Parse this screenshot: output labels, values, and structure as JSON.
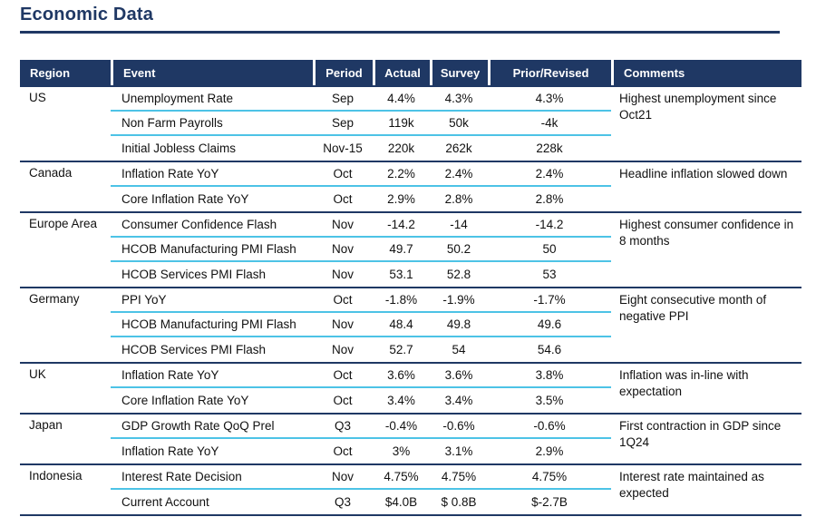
{
  "title": "Economic Data",
  "colors": {
    "navy": "#1F3864",
    "cyan": "#4DC3E6"
  },
  "table": {
    "headers": [
      "Region",
      "Event",
      "Period",
      "Actual",
      "Survey",
      "Prior/Revised",
      "Comments"
    ],
    "groups": [
      {
        "region": "US",
        "comment": "Highest unemployment since Oct21",
        "rows": [
          {
            "event": "Unemployment Rate",
            "period": "Sep",
            "actual": "4.4%",
            "survey": "4.3%",
            "prior": "4.3%"
          },
          {
            "event": "Non Farm Payrolls",
            "period": "Sep",
            "actual": "119k",
            "survey": "50k",
            "prior": "-4k"
          },
          {
            "event": "Initial Jobless Claims",
            "period": "Nov-15",
            "actual": "220k",
            "survey": "262k",
            "prior": "228k"
          }
        ]
      },
      {
        "region": "Canada",
        "comment": "Headline inflation slowed down",
        "rows": [
          {
            "event": "Inflation Rate YoY",
            "period": "Oct",
            "actual": "2.2%",
            "survey": "2.4%",
            "prior": "2.4%"
          },
          {
            "event": "Core Inflation Rate YoY",
            "period": "Oct",
            "actual": "2.9%",
            "survey": "2.8%",
            "prior": "2.8%"
          }
        ]
      },
      {
        "region": "Europe Area",
        "comment": "Highest consumer confidence in 8 months",
        "rows": [
          {
            "event": "Consumer Confidence Flash",
            "period": "Nov",
            "actual": "-14.2",
            "survey": "-14",
            "prior": "-14.2"
          },
          {
            "event": "HCOB Manufacturing PMI Flash",
            "period": "Nov",
            "actual": "49.7",
            "survey": "50.2",
            "prior": "50"
          },
          {
            "event": "HCOB Services PMI Flash",
            "period": "Nov",
            "actual": "53.1",
            "survey": "52.8",
            "prior": "53"
          }
        ]
      },
      {
        "region": "Germany",
        "comment": "Eight consecutive month of negative PPI",
        "rows": [
          {
            "event": "PPI YoY",
            "period": "Oct",
            "actual": "-1.8%",
            "survey": "-1.9%",
            "prior": "-1.7%"
          },
          {
            "event": "HCOB Manufacturing PMI Flash",
            "period": "Nov",
            "actual": "48.4",
            "survey": "49.8",
            "prior": "49.6"
          },
          {
            "event": "HCOB Services PMI Flash",
            "period": "Nov",
            "actual": "52.7",
            "survey": "54",
            "prior": "54.6"
          }
        ]
      },
      {
        "region": "UK",
        "comment": "Inflation was in-line with expectation",
        "rows": [
          {
            "event": "Inflation Rate YoY",
            "period": "Oct",
            "actual": "3.6%",
            "survey": "3.6%",
            "prior": "3.8%"
          },
          {
            "event": "Core Inflation Rate YoY",
            "period": "Oct",
            "actual": "3.4%",
            "survey": "3.4%",
            "prior": "3.5%"
          }
        ]
      },
      {
        "region": "Japan",
        "comment": "First contraction in GDP since 1Q24",
        "rows": [
          {
            "event": "GDP Growth Rate QoQ Prel",
            "period": "Q3",
            "actual": "-0.4%",
            "survey": "-0.6%",
            "prior": "-0.6%"
          },
          {
            "event": "Inflation Rate YoY",
            "period": "Oct",
            "actual": "3%",
            "survey": "3.1%",
            "prior": "2.9%"
          }
        ]
      },
      {
        "region": "Indonesia",
        "comment": "Interest rate maintained as expected",
        "rows": [
          {
            "event": "Interest Rate Decision",
            "period": "Nov",
            "actual": "4.75%",
            "survey": "4.75%",
            "prior": "4.75%"
          },
          {
            "event": "Current Account",
            "period": "Q3",
            "actual": "$4.0B",
            "survey": "$ 0.8B",
            "prior": "$-2.7B"
          }
        ]
      }
    ]
  }
}
